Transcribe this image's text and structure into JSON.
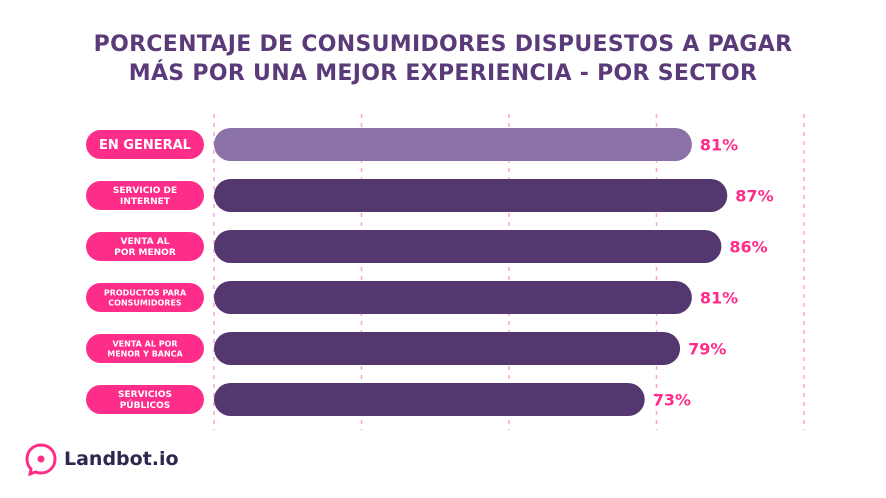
{
  "title_lines": [
    "PORCENTAJE DE CONSUMIDORES DISPUESTOS A PAGAR",
    "MÁS POR UNA MEJOR EXPERIENCIA - POR SECTOR"
  ],
  "brand": "Landbot.io",
  "colors": {
    "title": "#5a3a78",
    "bar_highlight": "#8a72a6",
    "bar": "#54376f",
    "label_bg": "#ff2d8a",
    "value_text": "#ff2d8a",
    "gridline": "#f7a6cf",
    "logo": "#ff2d8a"
  },
  "chart_data": {
    "type": "bar",
    "orientation": "horizontal",
    "unit": "%",
    "categories": [
      [
        "EN GENERAL"
      ],
      [
        "SERVICIO DE",
        "INTERNET"
      ],
      [
        "VENTA AL",
        "POR MENOR"
      ],
      [
        "PRODUCTOS PARA",
        "CONSUMIDORES"
      ],
      [
        "VENTA AL POR",
        "MENOR Y BANCA"
      ],
      [
        "SERVICIOS",
        "PÚBLICOS"
      ]
    ],
    "values": [
      81,
      87,
      86,
      81,
      79,
      73
    ],
    "value_labels": [
      "81%",
      "87%",
      "86%",
      "81%",
      "79%",
      "73%"
    ],
    "highlight_index": 0,
    "xlim": [
      0,
      100
    ],
    "gridlines": [
      0,
      25,
      50,
      75,
      100
    ]
  }
}
